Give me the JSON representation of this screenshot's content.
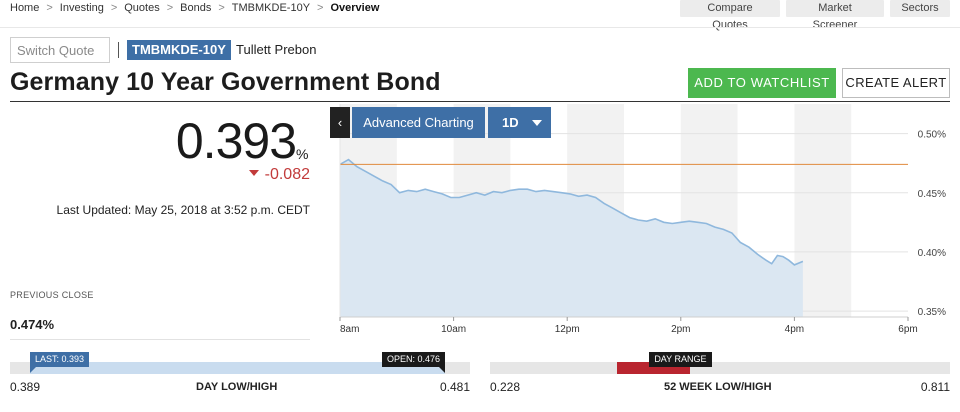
{
  "breadcrumb": [
    "Home",
    "Investing",
    "Quotes",
    "Bonds",
    "TMBMKDE-10Y",
    "Overview"
  ],
  "topnav": [
    "Compare Quotes",
    "Market Screener",
    "Sectors"
  ],
  "switch_quote": {
    "placeholder": "Switch Quote"
  },
  "ticker": "TMBMKDE-10Y",
  "source": "Tullett Prebon",
  "title": "Germany 10 Year Government Bond",
  "buttons": {
    "watchlist": "ADD TO WATCHLIST",
    "alert": "CREATE ALERT"
  },
  "quote": {
    "price": "0.393",
    "unit": "%",
    "change": "-0.082",
    "last_updated": "Last Updated: May 25, 2018 at 3:52 p.m. CEDT",
    "previous_close_label": "PREVIOUS CLOSE",
    "previous_close": "0.474%"
  },
  "chart_toolbar": {
    "back": "‹",
    "advanced": "Advanced Charting",
    "period": "1D"
  },
  "colors": {
    "accent": "#3e6fa6",
    "green": "#4cb84f",
    "down": "#c23b3b",
    "line": "#8fb8dd",
    "area": "#dbe7f2",
    "prev_close_line": "#e08a3c",
    "band": "#f2f2f2",
    "week_marker": "#b9252f"
  },
  "chart_data": {
    "type": "area",
    "title": "",
    "xlabel": "",
    "ylabel": "",
    "x_ticks": [
      "8am",
      "10am",
      "12pm",
      "2pm",
      "4pm",
      "6pm"
    ],
    "y_ticks": [
      "0.50%",
      "0.45%",
      "0.40%",
      "0.35%"
    ],
    "xlim": [
      8,
      18
    ],
    "ylim": [
      0.345,
      0.525
    ],
    "grid": true,
    "reference_line": {
      "value": 0.474
    },
    "shaded_bands": [
      [
        8,
        9
      ],
      [
        10,
        11
      ],
      [
        12,
        13
      ],
      [
        14,
        15
      ],
      [
        16,
        17
      ]
    ],
    "series": [
      {
        "x": [
          8.0,
          8.15,
          8.3,
          8.45,
          8.6,
          8.75,
          8.9,
          9.05,
          9.2,
          9.35,
          9.5,
          9.65,
          9.8,
          9.95,
          10.1,
          10.25,
          10.4,
          10.55,
          10.7,
          10.85,
          11.0,
          11.15,
          11.3,
          11.45,
          11.6,
          11.75,
          11.9,
          12.05,
          12.2,
          12.35,
          12.5,
          12.65,
          12.8,
          12.95,
          13.1,
          13.25,
          13.4,
          13.55,
          13.7,
          13.85,
          14.0,
          14.15,
          14.3,
          14.45,
          14.6,
          14.75,
          14.9,
          15.05,
          15.2,
          15.35,
          15.5,
          15.6,
          15.7,
          15.8,
          15.9,
          16.0,
          16.15
        ],
        "y": [
          0.474,
          0.478,
          0.472,
          0.468,
          0.464,
          0.46,
          0.457,
          0.45,
          0.452,
          0.451,
          0.453,
          0.451,
          0.449,
          0.446,
          0.446,
          0.448,
          0.45,
          0.448,
          0.451,
          0.45,
          0.452,
          0.453,
          0.453,
          0.451,
          0.452,
          0.451,
          0.45,
          0.449,
          0.447,
          0.448,
          0.446,
          0.441,
          0.437,
          0.433,
          0.429,
          0.427,
          0.426,
          0.428,
          0.425,
          0.424,
          0.425,
          0.426,
          0.425,
          0.424,
          0.421,
          0.419,
          0.416,
          0.408,
          0.404,
          0.398,
          0.393,
          0.39,
          0.397,
          0.396,
          0.393,
          0.389,
          0.392
        ]
      }
    ]
  },
  "day_range": {
    "low": "0.389",
    "high": "0.481",
    "label": "DAY LOW/HIGH",
    "last_tag": "LAST: 0.393",
    "open_tag": "OPEN: 0.476",
    "low_value": 0.389,
    "high_value": 0.481,
    "last_value": 0.393,
    "open_value": 0.476
  },
  "week_range": {
    "low": "0.228",
    "high": "0.811",
    "label": "52 WEEK LOW/HIGH",
    "day_tag": "DAY RANGE",
    "low_value": 0.228,
    "high_value": 0.811,
    "day_low": 0.389,
    "day_high": 0.481
  }
}
